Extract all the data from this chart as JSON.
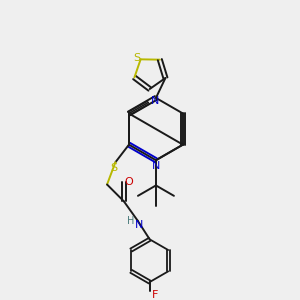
{
  "bg_color": "#efefef",
  "bond_color": "#1a1a1a",
  "colors": {
    "S": "#b8b800",
    "N": "#0000cc",
    "O": "#cc0000",
    "F": "#cc0000",
    "C": "#1a1a1a",
    "H": "#4a7a7a"
  }
}
